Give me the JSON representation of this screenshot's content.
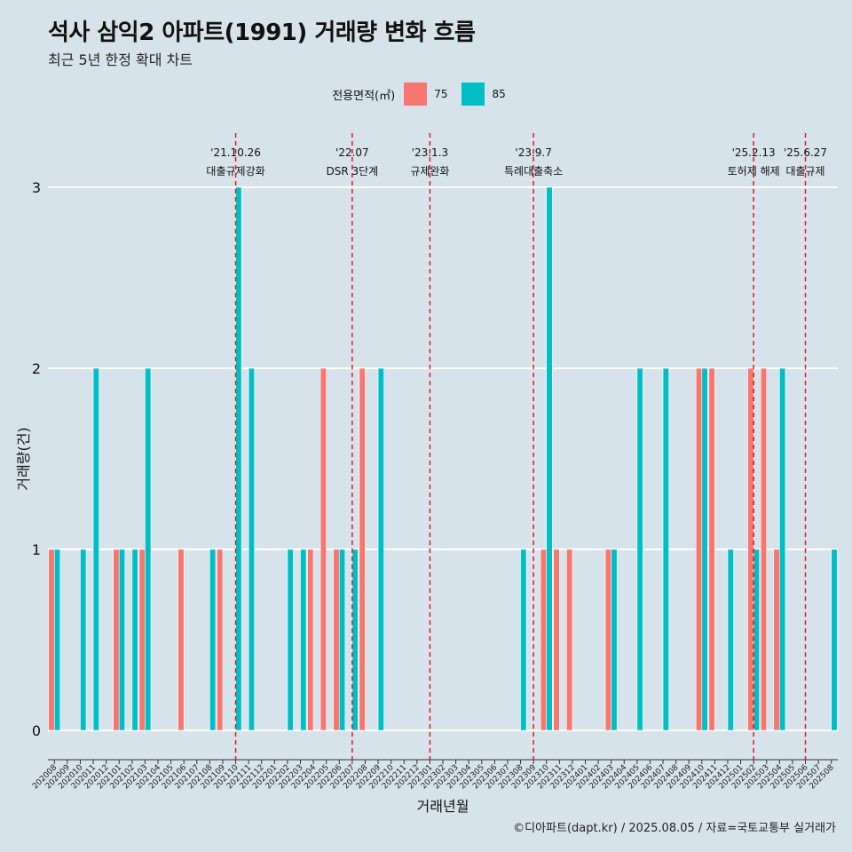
{
  "header": {
    "title": "석사 삼익2 아파트(1991) 거래량 변화 흐름",
    "subtitle": "최근 5년 한정 확대 차트"
  },
  "legend": {
    "title": "전용면적(㎡)",
    "items": [
      {
        "label": "75",
        "color": "#f8766d"
      },
      {
        "label": "85",
        "color": "#00bfc4"
      }
    ]
  },
  "caption": "©디아파트(dapt.kr) / 2025.08.05 / 자료=국토교통부 실거래가",
  "chart_data": {
    "type": "bar",
    "xlabel": "거래년월",
    "ylabel": "거래량(건)",
    "ylim": [
      0,
      3
    ],
    "yticks": [
      0,
      1,
      2,
      3
    ],
    "grid": true,
    "legend_position": "top",
    "categories": [
      "202008",
      "202009",
      "202010",
      "202011",
      "202012",
      "202101",
      "202102",
      "202103",
      "202104",
      "202105",
      "202106",
      "202107",
      "202108",
      "202109",
      "202110",
      "202111",
      "202112",
      "202201",
      "202202",
      "202203",
      "202204",
      "202205",
      "202206",
      "202207",
      "202208",
      "202209",
      "202210",
      "202211",
      "202212",
      "202301",
      "202302",
      "202303",
      "202304",
      "202305",
      "202306",
      "202307",
      "202308",
      "202309",
      "202310",
      "202311",
      "202312",
      "202401",
      "202402",
      "202403",
      "202404",
      "202405",
      "202406",
      "202407",
      "202408",
      "202409",
      "202410",
      "202411",
      "202412",
      "202501",
      "202502",
      "202503",
      "202504",
      "202505",
      "202506",
      "202507",
      "202508"
    ],
    "series": [
      {
        "name": "75",
        "color": "#f8766d",
        "values": [
          1,
          0,
          0,
          0,
          0,
          1,
          0,
          1,
          0,
          0,
          1,
          0,
          0,
          1,
          0,
          0,
          0,
          0,
          0,
          0,
          1,
          2,
          1,
          0,
          2,
          0,
          0,
          0,
          0,
          0,
          0,
          0,
          0,
          0,
          0,
          0,
          0,
          0,
          1,
          1,
          1,
          0,
          0,
          1,
          0,
          0,
          0,
          0,
          0,
          0,
          2,
          2,
          0,
          0,
          2,
          2,
          1,
          0,
          0,
          0,
          0
        ]
      },
      {
        "name": "85",
        "color": "#00bfc4",
        "values": [
          1,
          0,
          1,
          2,
          0,
          1,
          1,
          2,
          0,
          0,
          0,
          0,
          1,
          0,
          3,
          2,
          0,
          0,
          1,
          1,
          0,
          0,
          1,
          1,
          0,
          2,
          0,
          0,
          0,
          0,
          0,
          0,
          0,
          0,
          0,
          0,
          1,
          0,
          3,
          0,
          0,
          0,
          0,
          1,
          0,
          2,
          0,
          2,
          0,
          0,
          2,
          0,
          1,
          0,
          1,
          0,
          2,
          0,
          0,
          0,
          1
        ]
      }
    ],
    "events": [
      {
        "date": "'21.10.26",
        "label": "대출규제강화",
        "month": "202110"
      },
      {
        "date": "'22.07",
        "label": "DSR 3단계",
        "month": "202207"
      },
      {
        "date": "'23.1.3",
        "label": "규제완화",
        "month": "202301"
      },
      {
        "date": "'23.9.7",
        "label": "특례대출축소",
        "month": "202309"
      },
      {
        "date": "'25.2.13",
        "label": "토허제 해제",
        "month": "202502"
      },
      {
        "date": "'25.6.27",
        "label": "대출규제",
        "month": "202506"
      }
    ]
  }
}
